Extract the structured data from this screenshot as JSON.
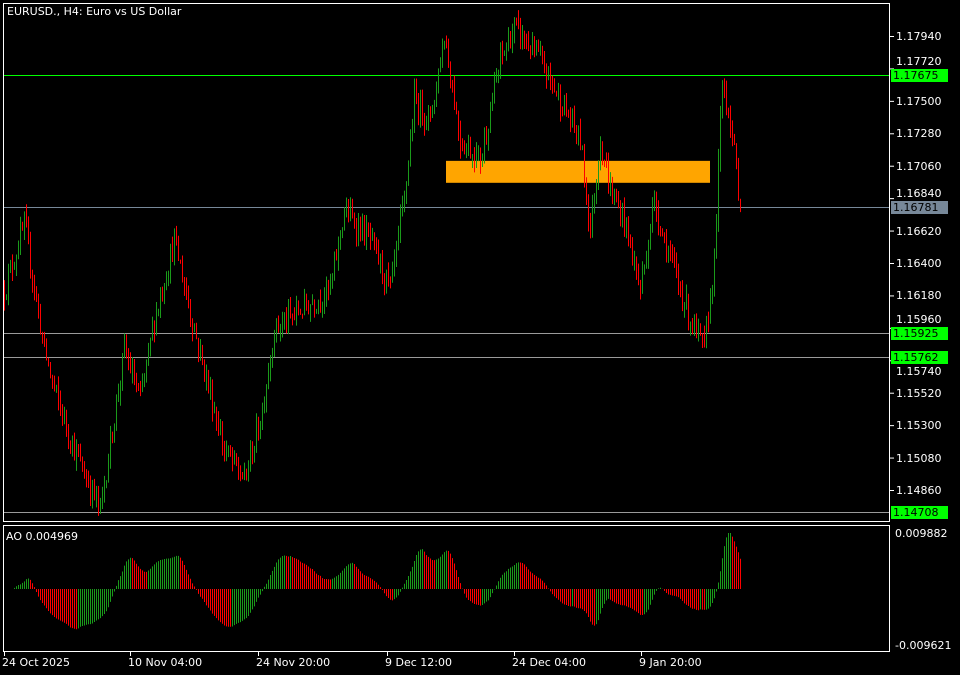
{
  "chart_title": "EURUSD., H4:  Euro vs US Dollar",
  "indicator_label": "AO 0.004969",
  "colors": {
    "background": "#000000",
    "up_bar": "#1a9a1a",
    "down_bar": "#ff0000",
    "grid_frame": "#ffffff",
    "level_green": "#00ff00",
    "bid_line": "#778899",
    "level_line": "#9a9a9a",
    "zone": "#ffa500"
  },
  "price_axis": {
    "ticks": [
      "1.17940",
      "1.17720",
      "1.17500",
      "1.17280",
      "1.17060",
      "1.16840",
      "1.16620",
      "1.16400",
      "1.16180",
      "1.15960",
      "1.15740",
      "1.15520",
      "1.15300",
      "1.15080",
      "1.14860"
    ]
  },
  "ao_axis": {
    "max": "0.009882",
    "min": "-0.009621"
  },
  "time_axis": {
    "labels": [
      "24 Oct 2025",
      "10 Nov 04:00",
      "24 Nov 20:00",
      "9 Dec 12:00",
      "24 Dec 04:00",
      "9 Jan 20:00"
    ]
  },
  "levels": [
    {
      "price": "1.17675",
      "style": "green"
    },
    {
      "price": "1.16781",
      "style": "bid"
    },
    {
      "price": "1.15925",
      "style": "level"
    },
    {
      "price": "1.15762",
      "style": "level"
    },
    {
      "price": "1.14708",
      "style": "level"
    }
  ],
  "zone": {
    "price_top": 1.17093,
    "price_bottom": 1.16944,
    "bar_start": 221,
    "bar_end": 353
  },
  "chart_data": {
    "type": "ohlc",
    "symbol": "EURUSD.",
    "timeframe": "H4",
    "ylim": [
      1.14508,
      1.1818
    ],
    "approx_close_path": [
      [
        0,
        1.16217
      ],
      [
        10,
        1.16658
      ],
      [
        20,
        1.1581
      ],
      [
        25,
        1.15538
      ],
      [
        35,
        1.15131
      ],
      [
        48,
        1.14724
      ],
      [
        60,
        1.1581
      ],
      [
        68,
        1.15471
      ],
      [
        75,
        1.16013
      ],
      [
        85,
        1.16556
      ],
      [
        95,
        1.15945
      ],
      [
        110,
        1.15131
      ],
      [
        120,
        1.14928
      ],
      [
        128,
        1.15335
      ],
      [
        135,
        1.15945
      ],
      [
        148,
        1.16081
      ],
      [
        163,
        1.16217
      ],
      [
        170,
        1.1676
      ],
      [
        183,
        1.16556
      ],
      [
        193,
        1.16217
      ],
      [
        200,
        1.16827
      ],
      [
        205,
        1.17506
      ],
      [
        213,
        1.1737
      ],
      [
        220,
        1.1795
      ],
      [
        228,
        1.17234
      ],
      [
        238,
        1.17099
      ],
      [
        248,
        1.17777
      ],
      [
        255,
        1.18
      ],
      [
        268,
        1.17777
      ],
      [
        278,
        1.17506
      ],
      [
        288,
        1.17234
      ],
      [
        293,
        1.16624
      ],
      [
        298,
        1.17234
      ],
      [
        303,
        1.16895
      ],
      [
        310,
        1.16692
      ],
      [
        318,
        1.16217
      ],
      [
        325,
        1.16827
      ],
      [
        330,
        1.16556
      ],
      [
        343,
        1.16013
      ],
      [
        350,
        1.1581
      ],
      [
        355,
        1.1642
      ],
      [
        359,
        1.17641
      ],
      [
        363,
        1.1737
      ],
      [
        368,
        1.16781
      ]
    ],
    "indicator": {
      "name": "AO",
      "current": 0.004969,
      "ylim": [
        -0.009621,
        0.009882
      ]
    }
  }
}
